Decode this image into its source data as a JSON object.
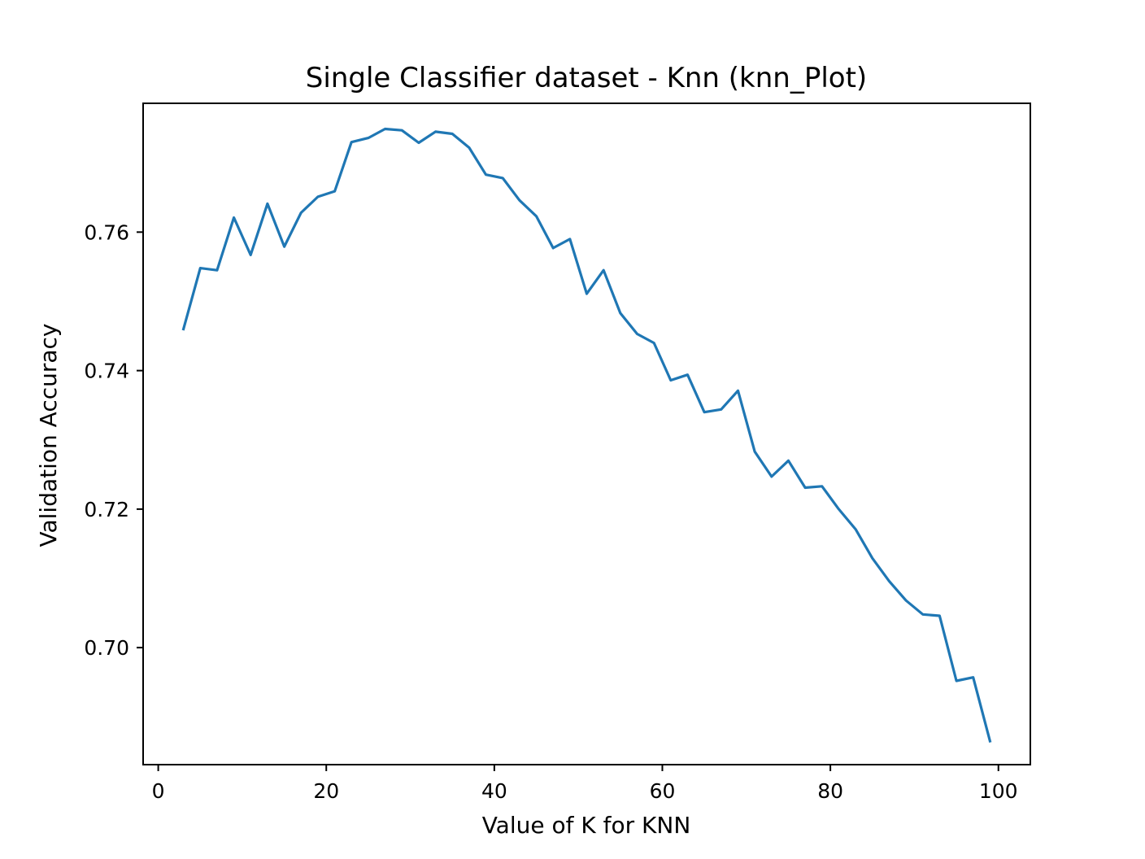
{
  "chart_data": {
    "type": "line",
    "title": "Single Classifier dataset - Knn (knn_Plot)",
    "xlabel": "Value of K for KNN",
    "ylabel": "Validation Accuracy",
    "xlim": [
      -1.8,
      103.8
    ],
    "ylim": [
      0.6831,
      0.7786
    ],
    "xticks": [
      0,
      20,
      40,
      60,
      80,
      100
    ],
    "xtick_labels": [
      "0",
      "20",
      "40",
      "60",
      "80",
      "100"
    ],
    "yticks": [
      0.7,
      0.72,
      0.74,
      0.76
    ],
    "ytick_labels": [
      "0.70",
      "0.72",
      "0.74",
      "0.76"
    ],
    "grid": false,
    "series": [
      {
        "color": "#1f77b4",
        "x": [
          3,
          5,
          7,
          9,
          11,
          13,
          15,
          17,
          19,
          21,
          23,
          25,
          27,
          29,
          31,
          33,
          35,
          37,
          39,
          41,
          43,
          45,
          47,
          49,
          51,
          53,
          55,
          57,
          59,
          61,
          63,
          65,
          67,
          69,
          71,
          73,
          75,
          77,
          79,
          81,
          83,
          85,
          87,
          89,
          91,
          93,
          95,
          97,
          99
        ],
        "y": [
          0.746,
          0.7548,
          0.7545,
          0.7621,
          0.7567,
          0.7641,
          0.7579,
          0.7628,
          0.7651,
          0.7659,
          0.773,
          0.7736,
          0.7749,
          0.7747,
          0.7729,
          0.7745,
          0.7742,
          0.7722,
          0.7683,
          0.7678,
          0.7646,
          0.7623,
          0.7577,
          0.759,
          0.7511,
          0.7545,
          0.7483,
          0.7453,
          0.744,
          0.7386,
          0.7394,
          0.734,
          0.7344,
          0.7371,
          0.7283,
          0.7247,
          0.727,
          0.7231,
          0.7233,
          0.72,
          0.7171,
          0.7129,
          0.7096,
          0.7068,
          0.7048,
          0.7046,
          0.6952,
          0.6957,
          0.6865
        ]
      }
    ]
  }
}
